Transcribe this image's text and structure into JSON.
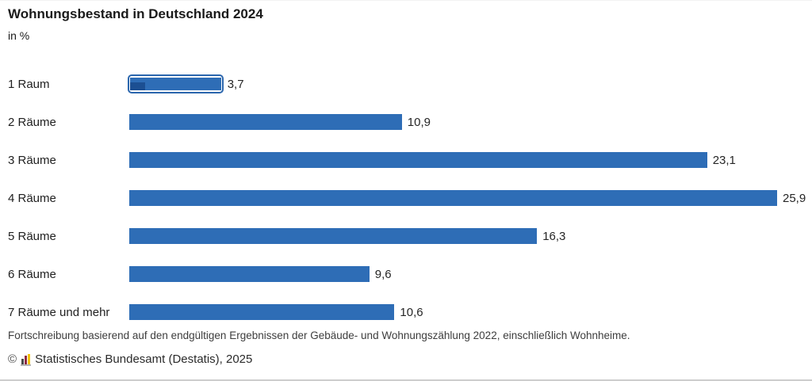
{
  "chart_data": {
    "type": "bar",
    "orientation": "horizontal",
    "title": "Wohnungsbestand in Deutschland 2024",
    "subtitle": "in %",
    "categories": [
      "1 Raum",
      "2 Räume",
      "3 Räume",
      "4 Räume",
      "5 Räume",
      "6 Räume",
      "7 Räume und mehr"
    ],
    "values": [
      3.7,
      10.9,
      23.1,
      25.9,
      16.3,
      9.6,
      10.6
    ],
    "value_labels": [
      "3,7",
      "10,9",
      "23,1",
      "25,9",
      "16,3",
      "9,6",
      "10,6"
    ],
    "xlim": [
      0,
      25.9
    ],
    "grid": false,
    "legend": null,
    "bar_color": "#2e6db6",
    "selected_index": 0,
    "selected_patch_color": "#1c4f92",
    "focus_ring_color": "#2b66ad"
  },
  "footer": {
    "note": "Fortschreibung basierend auf den endgültigen Ergebnissen der Gebäude- und Wohnungszählung 2022, einschließlich Wohnheime.",
    "copyright_symbol": "©",
    "copyright_text": "Statistisches Bundesamt (Destatis), 2025",
    "logo_icon": "destatis-bar-chart-icon",
    "logo_colors": {
      "dark": "#4a4a4a",
      "red": "#8d2b45",
      "gold": "#f2c100"
    }
  }
}
